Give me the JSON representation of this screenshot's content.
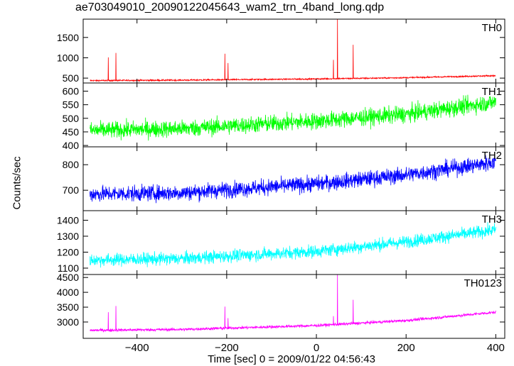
{
  "chart_data": {
    "type": "line",
    "title": "ae703049010_20090122045643_wam2_trn_4band_long.qdp",
    "xlabel": "Time [sec] 0 = 2009/01/22 04:56:43",
    "ylabel": "Counts/sec",
    "xlim": [
      -520,
      420
    ],
    "xticks": [
      -400,
      -200,
      0,
      200,
      400
    ],
    "grid": false,
    "legend": "none",
    "panels": [
      {
        "name": "TH0",
        "color": "#ff0000",
        "ylim": [
          380,
          1950
        ],
        "yticks": [
          500,
          1000,
          1500
        ],
        "baseline": [
          [
            -505,
            440
          ],
          [
            -300,
            450
          ],
          [
            0,
            480
          ],
          [
            200,
            510
          ],
          [
            400,
            560
          ]
        ],
        "noise": 12,
        "spikes": [
          [
            -464,
            1010
          ],
          [
            -447,
            1120
          ],
          [
            -204,
            1100
          ],
          [
            -197,
            870
          ],
          [
            38,
            950
          ],
          [
            47,
            1950
          ],
          [
            82,
            1320
          ]
        ]
      },
      {
        "name": "TH1",
        "color": "#00ff00",
        "ylim": [
          395,
          630
        ],
        "yticks": [
          400,
          450,
          500,
          550,
          600
        ],
        "baseline": [
          [
            -505,
            455
          ],
          [
            -300,
            462
          ],
          [
            0,
            490
          ],
          [
            200,
            515
          ],
          [
            400,
            560
          ]
        ],
        "noise": 22,
        "spikes": []
      },
      {
        "name": "TH2",
        "color": "#0000ff",
        "ylim": [
          620,
          870
        ],
        "yticks": [
          700,
          800
        ],
        "baseline": [
          [
            -505,
            685
          ],
          [
            -300,
            690
          ],
          [
            0,
            725
          ],
          [
            200,
            760
          ],
          [
            400,
            810
          ]
        ],
        "noise": 22,
        "spikes": []
      },
      {
        "name": "TH3",
        "color": "#00ffff",
        "ylim": [
          1060,
          1460
        ],
        "yticks": [
          1100,
          1200,
          1300,
          1400
        ],
        "baseline": [
          [
            -505,
            1150
          ],
          [
            -300,
            1160
          ],
          [
            0,
            1205
          ],
          [
            200,
            1265
          ],
          [
            400,
            1340
          ]
        ],
        "noise": 28,
        "spikes": []
      },
      {
        "name": "TH0123",
        "color": "#ff00ff",
        "ylim": [
          2450,
          4600
        ],
        "yticks": [
          3000,
          3500,
          4000,
          4500
        ],
        "baseline": [
          [
            -505,
            2720
          ],
          [
            -300,
            2750
          ],
          [
            0,
            2880
          ],
          [
            200,
            3050
          ],
          [
            400,
            3330
          ]
        ],
        "noise": 35,
        "spikes": [
          [
            -464,
            3330
          ],
          [
            -447,
            3540
          ],
          [
            -204,
            3520
          ],
          [
            -197,
            3130
          ],
          [
            38,
            3200
          ],
          [
            47,
            4600
          ],
          [
            82,
            3750
          ]
        ]
      }
    ]
  }
}
